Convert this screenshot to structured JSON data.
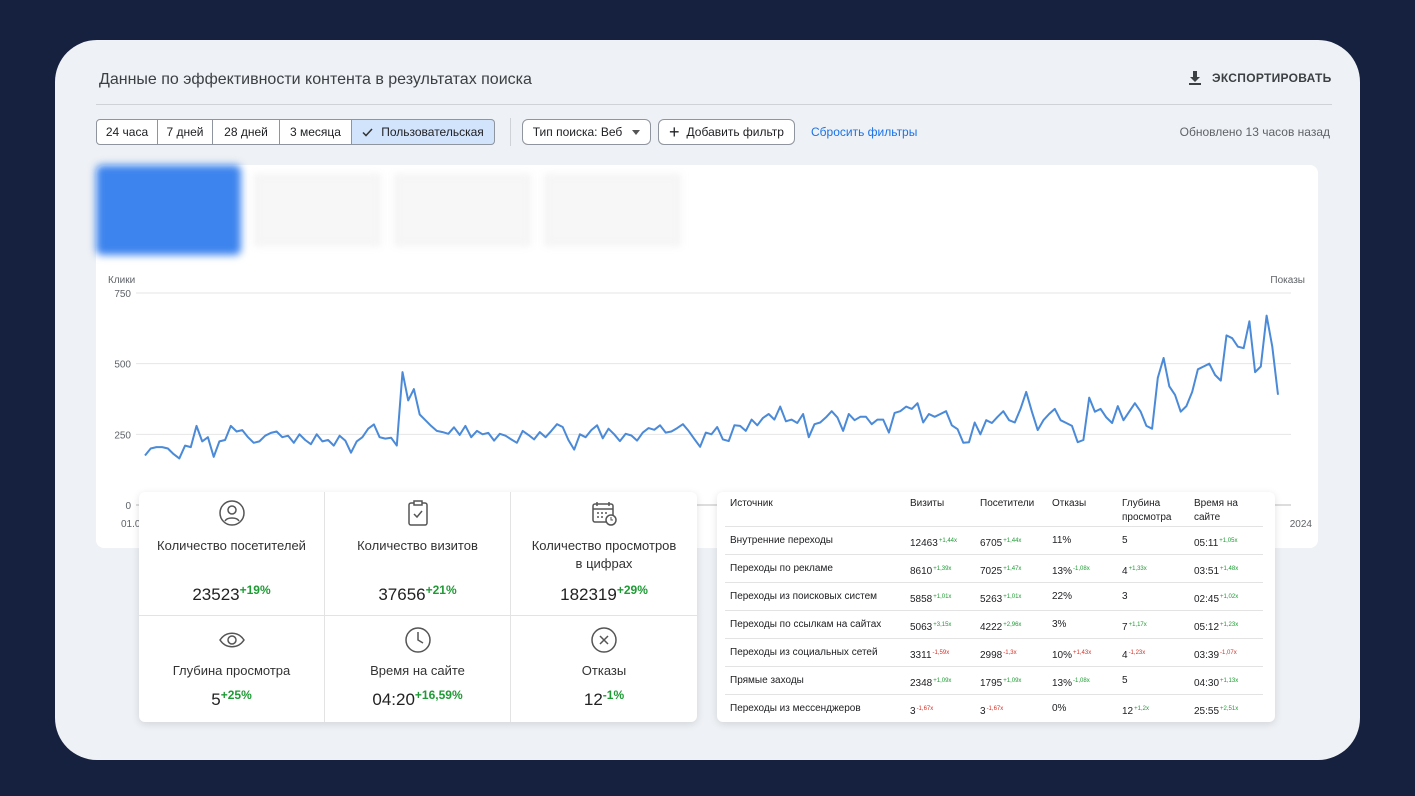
{
  "header": {
    "title": "Данные по эффективности контента в результатах поиска",
    "export": "ЭКСПОРТИРОВАТЬ"
  },
  "filters": {
    "periods": [
      "24 часа",
      "7 дней",
      "28 дней",
      "3 месяца",
      "Пользовательская"
    ],
    "active_period": 4,
    "search_type": "Тип поиска: Веб",
    "add_filter": "Добавить фильтр",
    "reset": "Сбросить фильтры",
    "updated": "Обновлено 13 часов назад"
  },
  "chart": {
    "type": "line",
    "y_label": "Клики",
    "y2_label": "Показы",
    "x_labels": [
      "01.0",
      "2024"
    ],
    "color": "#4a8ad8",
    "grid": true,
    "ylim": [
      0,
      750
    ],
    "yticks": [
      0,
      250,
      500,
      750
    ],
    "values": [
      175,
      200,
      205,
      205,
      200,
      180,
      165,
      210,
      205,
      280,
      225,
      240,
      170,
      225,
      230,
      280,
      260,
      265,
      240,
      220,
      225,
      245,
      255,
      260,
      240,
      245,
      220,
      250,
      230,
      215,
      250,
      225,
      230,
      210,
      245,
      228,
      185,
      225,
      240,
      270,
      285,
      240,
      235,
      238,
      210,
      470,
      370,
      410,
      320,
      300,
      280,
      262,
      258,
      252,
      275,
      248,
      280,
      240,
      262,
      250,
      255,
      228,
      252,
      245,
      232,
      220,
      262,
      248,
      232,
      258,
      240,
      262,
      286,
      276,
      230,
      196,
      250,
      240,
      265,
      282,
      236,
      270,
      250,
      226,
      252,
      246,
      228,
      256,
      272,
      266,
      282,
      256,
      260,
      272,
      286,
      262,
      234,
      206,
      256,
      250,
      276,
      232,
      226,
      282,
      280,
      262,
      302,
      282,
      308,
      322,
      302,
      348,
      296,
      302,
      290,
      322,
      240,
      286,
      292,
      310,
      332,
      310,
      262,
      322,
      300,
      312,
      312,
      286,
      302,
      302,
      256,
      326,
      332,
      348,
      340,
      360,
      292,
      322,
      312,
      322,
      332,
      282,
      268,
      220,
      222,
      292,
      250,
      300,
      290,
      312,
      332,
      300,
      292,
      340,
      400,
      330,
      265,
      300,
      322,
      340,
      300,
      290,
      280,
      222,
      230,
      380,
      330,
      340,
      310,
      290,
      350,
      300,
      330,
      360,
      330,
      280,
      270,
      450,
      520,
      420,
      390,
      330,
      350,
      400,
      480,
      490,
      500,
      460,
      440,
      600,
      590,
      560,
      555,
      650,
      470,
      490,
      670,
      560,
      390
    ]
  },
  "metrics": [
    {
      "label": "Количество посетителей",
      "value": "23523",
      "change": "+19%"
    },
    {
      "label": "Количество визитов",
      "value": "37656",
      "change": "+21%"
    },
    {
      "label": "Количество просмотров в цифрах",
      "value": "182319",
      "change": "+29%"
    },
    {
      "label": "Глубина просмотра",
      "value": "5",
      "change": "+25%"
    },
    {
      "label": "Время на сайте",
      "value": "04:20",
      "change": "+16,59%"
    },
    {
      "label": "Отказы",
      "value": "12",
      "change": "-1%"
    }
  ],
  "trend_colors": {
    "up": "#1e9b34",
    "down": "#d93025"
  },
  "table": {
    "columns": [
      "Источник",
      "Визиты",
      "Посетители",
      "Отказы",
      "Глубина просмотра",
      "Время на сайте"
    ],
    "rows": [
      [
        "Внутренние переходы",
        {
          "value": "12463",
          "change": "+1,44x",
          "trend": "up"
        },
        {
          "value": "6705",
          "change": "+1,44x",
          "trend": "up"
        },
        {
          "value": "11%"
        },
        {
          "value": "5"
        },
        {
          "value": "05:11",
          "change": "+1,05x",
          "trend": "up"
        }
      ],
      [
        "Переходы по рекламе",
        {
          "value": "8610",
          "change": "+1,39x",
          "trend": "up"
        },
        {
          "value": "7025",
          "change": "+1,47x",
          "trend": "up"
        },
        {
          "value": "13%",
          "change": "-1,08x",
          "trend": "up"
        },
        {
          "value": "4",
          "change": "+1,33x",
          "trend": "up"
        },
        {
          "value": "03:51",
          "change": "+1,48x",
          "trend": "up"
        }
      ],
      [
        "Переходы из поисковых систем",
        {
          "value": "5858",
          "change": "+1,01x",
          "trend": "up"
        },
        {
          "value": "5263",
          "change": "+1,01x",
          "trend": "up"
        },
        {
          "value": "22%"
        },
        {
          "value": "3"
        },
        {
          "value": "02:45",
          "change": "+1,02x",
          "trend": "up"
        }
      ],
      [
        "Переходы по ссылкам на сайтах",
        {
          "value": "5063",
          "change": "+3,15x",
          "trend": "up"
        },
        {
          "value": "4222",
          "change": "+2,96x",
          "trend": "up"
        },
        {
          "value": "3%"
        },
        {
          "value": "7",
          "change": "+1,17x",
          "trend": "up"
        },
        {
          "value": "05:12",
          "change": "+1,23x",
          "trend": "up"
        }
      ],
      [
        "Переходы из социальных сетей",
        {
          "value": "3311",
          "change": "-1,59x",
          "trend": "down"
        },
        {
          "value": "2998",
          "change": "-1,3x",
          "trend": "down"
        },
        {
          "value": "10%",
          "change": "+1,43x",
          "trend": "down"
        },
        {
          "value": "4",
          "change": "-1,23x",
          "trend": "down"
        },
        {
          "value": "03:39",
          "change": "-1,07x",
          "trend": "down"
        }
      ],
      [
        "Прямые заходы",
        {
          "value": "2348",
          "change": "+1,09x",
          "trend": "up"
        },
        {
          "value": "1795",
          "change": "+1,09x",
          "trend": "up"
        },
        {
          "value": "13%",
          "change": "-1,08x",
          "trend": "up"
        },
        {
          "value": "5"
        },
        {
          "value": "04:30",
          "change": "+1,13x",
          "trend": "up"
        }
      ],
      [
        "Переходы из мессенджеров",
        {
          "value": "3",
          "change": "-1,67x",
          "trend": "down"
        },
        {
          "value": "3",
          "change": "-1,67x",
          "trend": "down"
        },
        {
          "value": "0%"
        },
        {
          "value": "12",
          "change": "+1,2x",
          "trend": "up"
        },
        {
          "value": "25:55",
          "change": "+2,51x",
          "trend": "up"
        }
      ]
    ]
  }
}
